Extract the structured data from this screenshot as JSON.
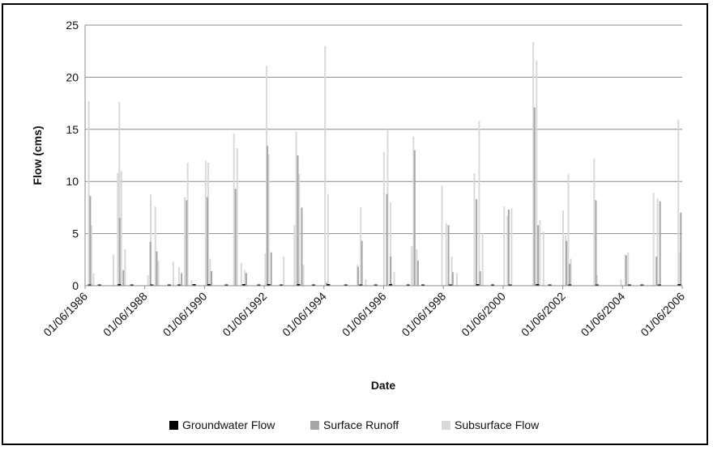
{
  "chart_data": {
    "type": "bar",
    "xlabel": "Date",
    "ylabel": "Flow (cms)",
    "ylim": [
      0,
      25
    ],
    "yticks": [
      0,
      5,
      10,
      15,
      20,
      25
    ],
    "xlim": [
      "1986-01-06",
      "2006-01-06"
    ],
    "xtick_labels": [
      "01/06/1986",
      "01/06/1988",
      "01/06/1990",
      "01/06/1992",
      "01/06/1994",
      "01/06/1996",
      "01/06/1998",
      "01/06/2000",
      "01/06/2002",
      "01/06/2004",
      "01/06/2006"
    ],
    "grid": "horizontal",
    "legend_position": "bottom",
    "series": [
      {
        "name": "Groundwater Flow",
        "color": "#000000",
        "points": [
          [
            "1986-03-01",
            0.1
          ],
          [
            "1986-07-01",
            0.1
          ],
          [
            "1987-03-01",
            0.15
          ],
          [
            "1987-08-01",
            0.1
          ],
          [
            "1988-04-01",
            0.1
          ],
          [
            "1988-11-01",
            0.05
          ],
          [
            "1989-03-01",
            0.1
          ],
          [
            "1989-09-01",
            0.15
          ],
          [
            "1990-03-01",
            0.15
          ],
          [
            "1990-10-01",
            0.1
          ],
          [
            "1991-05-01",
            0.15
          ],
          [
            "1991-11-01",
            0.1
          ],
          [
            "1992-03-01",
            0.15
          ],
          [
            "1992-08-01",
            0.1
          ],
          [
            "1993-03-01",
            0.15
          ],
          [
            "1993-09-01",
            0.1
          ],
          [
            "1994-03-01",
            0.15
          ],
          [
            "1994-10-01",
            0.1
          ],
          [
            "1995-04-01",
            0.1
          ],
          [
            "1995-10-01",
            0.1
          ],
          [
            "1996-04-01",
            0.15
          ],
          [
            "1996-11-01",
            0.1
          ],
          [
            "1997-05-01",
            0.1
          ],
          [
            "1998-04-01",
            0.1
          ],
          [
            "1999-03-01",
            0.15
          ],
          [
            "1999-09-01",
            0.1
          ],
          [
            "2000-04-01",
            0.1
          ],
          [
            "2001-03-01",
            0.15
          ],
          [
            "2001-08-01",
            0.1
          ],
          [
            "2002-04-01",
            0.1
          ],
          [
            "2003-03-01",
            0.05
          ],
          [
            "2004-04-01",
            0.1
          ],
          [
            "2004-09-01",
            0.1
          ],
          [
            "2005-04-01",
            0.1
          ],
          [
            "2005-12-01",
            0.15
          ]
        ]
      },
      {
        "name": "Surface Runoff",
        "color": "#a6a6a6",
        "points": [
          [
            "1986-03-10",
            8.6
          ],
          [
            "1987-03-05",
            6.5
          ],
          [
            "1987-04-20",
            1.5
          ],
          [
            "1988-03-15",
            4.2
          ],
          [
            "1988-06-01",
            3.3
          ],
          [
            "1989-04-01",
            1.2
          ],
          [
            "1989-06-01",
            8.2
          ],
          [
            "1990-02-10",
            8.5
          ],
          [
            "1990-04-01",
            1.4
          ],
          [
            "1991-01-20",
            9.3
          ],
          [
            "1991-06-01",
            1.2
          ],
          [
            "1992-02-15",
            13.4
          ],
          [
            "1992-04-01",
            3.2
          ],
          [
            "1993-02-20",
            12.5
          ],
          [
            "1993-04-10",
            7.5
          ],
          [
            "1994-02-10",
            0.3
          ],
          [
            "1995-03-01",
            1.8
          ],
          [
            "1995-04-15",
            4.3
          ],
          [
            "1996-02-15",
            8.8
          ],
          [
            "1996-04-01",
            2.8
          ],
          [
            "1997-01-20",
            13.0
          ],
          [
            "1997-03-01",
            2.4
          ],
          [
            "1998-03-10",
            5.8
          ],
          [
            "1998-05-01",
            1.3
          ],
          [
            "1999-02-15",
            8.3
          ],
          [
            "1999-04-01",
            1.4
          ],
          [
            "2000-03-15",
            7.3
          ],
          [
            "2001-01-25",
            17.1
          ],
          [
            "2001-03-10",
            5.8
          ],
          [
            "2002-02-20",
            4.3
          ],
          [
            "2002-04-01",
            2.1
          ],
          [
            "2003-02-15",
            8.2
          ],
          [
            "2004-02-20",
            2.9
          ],
          [
            "2005-02-25",
            2.8
          ],
          [
            "2005-04-10",
            8.1
          ],
          [
            "2005-12-20",
            7.0
          ]
        ]
      },
      {
        "name": "Subsurface Flow",
        "color": "#d9d9d9",
        "points": [
          [
            "1986-02-20",
            17.7
          ],
          [
            "1986-03-25",
            5.8
          ],
          [
            "1986-04-20",
            1.2
          ],
          [
            "1986-12-20",
            3.0
          ],
          [
            "1987-02-10",
            10.8
          ],
          [
            "1987-03-01",
            17.6
          ],
          [
            "1987-03-25",
            11.0
          ],
          [
            "1987-05-10",
            3.5
          ],
          [
            "1988-02-15",
            1.0
          ],
          [
            "1988-03-20",
            8.8
          ],
          [
            "1988-05-15",
            7.6
          ],
          [
            "1988-06-20",
            2.4
          ],
          [
            "1988-12-20",
            2.3
          ],
          [
            "1989-03-01",
            1.8
          ],
          [
            "1989-05-10",
            8.5
          ],
          [
            "1989-06-15",
            11.8
          ],
          [
            "1989-08-01",
            0.5
          ],
          [
            "1990-01-20",
            12.0
          ],
          [
            "1990-02-20",
            11.8
          ],
          [
            "1990-03-15",
            2.6
          ],
          [
            "1991-01-01",
            14.6
          ],
          [
            "1991-02-10",
            13.2
          ],
          [
            "1991-04-01",
            2.2
          ],
          [
            "1991-05-15",
            1.5
          ],
          [
            "1992-01-20",
            3.1
          ],
          [
            "1992-02-05",
            21.1
          ],
          [
            "1992-03-01",
            12.6
          ],
          [
            "1992-09-01",
            2.8
          ],
          [
            "1993-01-10",
            5.8
          ],
          [
            "1993-02-01",
            14.8
          ],
          [
            "1993-03-10",
            10.7
          ],
          [
            "1993-05-01",
            2.0
          ],
          [
            "1994-01-20",
            23.0
          ],
          [
            "1994-02-25",
            8.8
          ],
          [
            "1995-02-20",
            2.0
          ],
          [
            "1995-04-01",
            7.5
          ],
          [
            "1995-06-01",
            0.6
          ],
          [
            "1996-01-10",
            12.8
          ],
          [
            "1996-02-25",
            15.0
          ],
          [
            "1996-04-01",
            8.0
          ],
          [
            "1996-05-15",
            1.3
          ],
          [
            "1996-12-15",
            3.8
          ],
          [
            "1997-01-05",
            14.3
          ],
          [
            "1997-02-15",
            3.5
          ],
          [
            "1997-12-20",
            9.6
          ],
          [
            "1998-02-10",
            6.0
          ],
          [
            "1998-04-20",
            2.8
          ],
          [
            "1998-06-20",
            1.2
          ],
          [
            "1999-01-20",
            10.8
          ],
          [
            "1999-03-20",
            15.8
          ],
          [
            "1999-05-01",
            5.0
          ],
          [
            "2000-01-20",
            7.6
          ],
          [
            "2000-03-01",
            6.7
          ],
          [
            "2000-04-20",
            7.4
          ],
          [
            "2001-01-10",
            23.4
          ],
          [
            "2001-02-20",
            21.6
          ],
          [
            "2001-04-01",
            6.3
          ],
          [
            "2001-05-15",
            5.2
          ],
          [
            "2002-01-10",
            7.2
          ],
          [
            "2002-02-10",
            4.8
          ],
          [
            "2002-03-15",
            10.7
          ],
          [
            "2002-04-15",
            2.6
          ],
          [
            "2003-01-25",
            12.2
          ],
          [
            "2003-03-01",
            1.0
          ],
          [
            "2003-12-20",
            0.6
          ],
          [
            "2004-02-10",
            3.0
          ],
          [
            "2004-03-15",
            3.2
          ],
          [
            "2005-01-20",
            8.9
          ],
          [
            "2005-03-10",
            8.4
          ],
          [
            "2005-11-20",
            15.9
          ],
          [
            "2005-12-10",
            3.2
          ]
        ]
      }
    ]
  }
}
